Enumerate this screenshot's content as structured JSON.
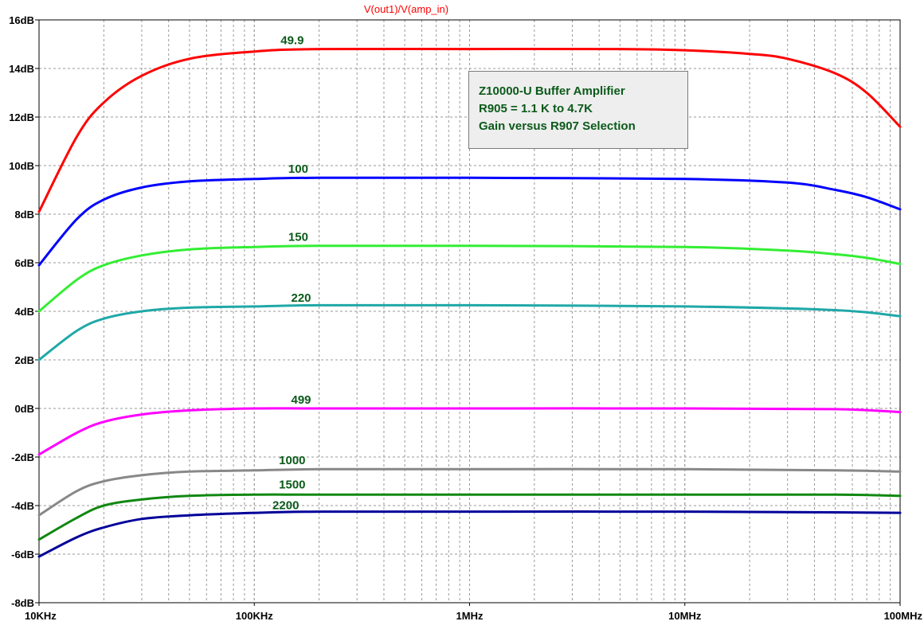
{
  "chart_data": {
    "type": "line",
    "title": "V(out1)/V(amp_in)",
    "title_color": "#ff0000",
    "x_scale": "log",
    "xlim": [
      10000,
      100000000
    ],
    "ylim": [
      -8,
      16
    ],
    "grid": true,
    "x_ticks": [
      {
        "value": 10000,
        "label": "10KHz"
      },
      {
        "value": 100000,
        "label": "100KHz"
      },
      {
        "value": 1000000,
        "label": "1MHz"
      },
      {
        "value": 10000000,
        "label": "10MHz"
      },
      {
        "value": 100000000,
        "label": "100MHz"
      }
    ],
    "y_ticks": [
      {
        "value": 16,
        "label": "16dB"
      },
      {
        "value": 14,
        "label": "14dB"
      },
      {
        "value": 12,
        "label": "12dB"
      },
      {
        "value": 10,
        "label": "10dB"
      },
      {
        "value": 8,
        "label": "8dB"
      },
      {
        "value": 6,
        "label": "6dB"
      },
      {
        "value": 4,
        "label": "4dB"
      },
      {
        "value": 2,
        "label": "2dB"
      },
      {
        "value": 0,
        "label": "0dB"
      },
      {
        "value": -2,
        "label": "-2dB"
      },
      {
        "value": -4,
        "label": "-4dB"
      },
      {
        "value": -6,
        "label": "-6dB"
      },
      {
        "value": -8,
        "label": "-8dB"
      }
    ],
    "series": [
      {
        "name": "49.9",
        "color": "#ff0000",
        "x": [
          10000,
          15000,
          20000,
          30000,
          50000,
          100000,
          200000,
          1000000,
          5000000,
          10000000,
          20000000,
          30000000,
          50000000,
          70000000,
          100000000
        ],
        "y": [
          8.1,
          11.2,
          12.6,
          13.7,
          14.4,
          14.7,
          14.8,
          14.8,
          14.8,
          14.75,
          14.6,
          14.4,
          13.8,
          13.0,
          11.6
        ],
        "label_x": 150000,
        "label_y": 15.0
      },
      {
        "name": "100",
        "color": "#0000ff",
        "x": [
          10000,
          15000,
          20000,
          30000,
          50000,
          100000,
          200000,
          1000000,
          10000000,
          30000000,
          50000000,
          70000000,
          100000000
        ],
        "y": [
          5.9,
          7.8,
          8.6,
          9.1,
          9.35,
          9.45,
          9.5,
          9.5,
          9.45,
          9.3,
          9.0,
          8.7,
          8.2
        ],
        "label_x": 160000,
        "label_y": 9.7
      },
      {
        "name": "150",
        "color": "#33ee33",
        "x": [
          10000,
          15000,
          20000,
          30000,
          50000,
          100000,
          200000,
          1000000,
          10000000,
          30000000,
          50000000,
          70000000,
          100000000
        ],
        "y": [
          4.0,
          5.3,
          5.9,
          6.3,
          6.55,
          6.65,
          6.7,
          6.7,
          6.65,
          6.5,
          6.35,
          6.2,
          5.95
        ],
        "label_x": 160000,
        "label_y": 6.9
      },
      {
        "name": "220",
        "color": "#20a8a8",
        "x": [
          10000,
          15000,
          20000,
          30000,
          50000,
          100000,
          200000,
          1000000,
          10000000,
          50000000,
          100000000
        ],
        "y": [
          2.0,
          3.2,
          3.7,
          4.0,
          4.15,
          4.2,
          4.25,
          4.25,
          4.2,
          4.05,
          3.8
        ],
        "label_x": 165000,
        "label_y": 4.4
      },
      {
        "name": "499",
        "color": "#ff00ff",
        "x": [
          10000,
          15000,
          20000,
          30000,
          50000,
          100000,
          200000,
          1000000,
          10000000,
          50000000,
          100000000
        ],
        "y": [
          -1.9,
          -1.0,
          -0.55,
          -0.25,
          -0.08,
          0.0,
          0.0,
          0.0,
          0.0,
          -0.03,
          -0.15
        ],
        "label_x": 165000,
        "label_y": 0.2
      },
      {
        "name": "1000",
        "color": "#888888",
        "x": [
          10000,
          15000,
          20000,
          30000,
          50000,
          100000,
          200000,
          1000000,
          10000000,
          50000000,
          100000000
        ],
        "y": [
          -4.4,
          -3.4,
          -3.0,
          -2.75,
          -2.6,
          -2.55,
          -2.5,
          -2.5,
          -2.5,
          -2.55,
          -2.6
        ],
        "label_x": 150000,
        "label_y": -2.3
      },
      {
        "name": "1500",
        "color": "#118811",
        "x": [
          10000,
          15000,
          20000,
          30000,
          50000,
          100000,
          200000,
          1000000,
          10000000,
          50000000,
          100000000
        ],
        "y": [
          -5.4,
          -4.5,
          -4.0,
          -3.75,
          -3.6,
          -3.55,
          -3.55,
          -3.55,
          -3.55,
          -3.55,
          -3.6
        ],
        "label_x": 150000,
        "label_y": -3.3
      },
      {
        "name": "2200",
        "color": "#000099",
        "x": [
          10000,
          15000,
          20000,
          30000,
          50000,
          100000,
          200000,
          1000000,
          10000000,
          50000000,
          100000000
        ],
        "y": [
          -6.1,
          -5.3,
          -4.9,
          -4.55,
          -4.4,
          -4.3,
          -4.25,
          -4.25,
          -4.25,
          -4.28,
          -4.3
        ],
        "label_x": 140000,
        "label_y": -4.15
      }
    ],
    "annotation": {
      "lines": [
        "Z10000-U Buffer Amplifier",
        "R905 = 1.1 K to 4.7K",
        "Gain versus R907 Selection"
      ],
      "text_color": "#0b5a1a",
      "background": "#eeeeee"
    }
  }
}
